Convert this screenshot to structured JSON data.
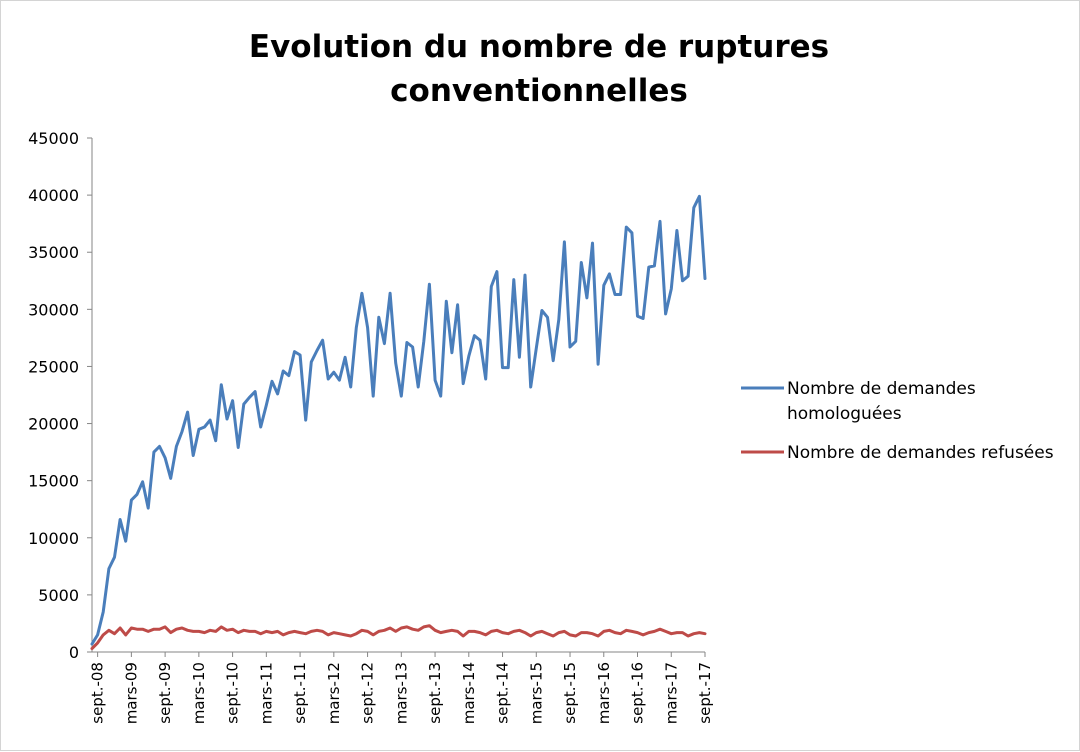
{
  "chart_data": {
    "type": "line",
    "title_lines": [
      "Evolution du nombre de ruptures",
      "conventionnelles"
    ],
    "xlabel": "",
    "ylabel": "",
    "ylim": [
      0,
      45000
    ],
    "y_ticks": [
      "0",
      "5000",
      "10000",
      "15000",
      "20000",
      "25000",
      "30000",
      "35000",
      "40000",
      "45000"
    ],
    "x_start": "2008-08",
    "x_end": "2017-09",
    "x_ticks": [
      {
        "label": "sept.-08",
        "date": "2008-09"
      },
      {
        "label": "mars-09",
        "date": "2009-03"
      },
      {
        "label": "sept.-09",
        "date": "2009-09"
      },
      {
        "label": "mars-10",
        "date": "2010-03"
      },
      {
        "label": "sept.-10",
        "date": "2010-09"
      },
      {
        "label": "mars-11",
        "date": "2011-03"
      },
      {
        "label": "sept.-11",
        "date": "2011-09"
      },
      {
        "label": "mars-12",
        "date": "2012-03"
      },
      {
        "label": "sept.-12",
        "date": "2012-09"
      },
      {
        "label": "mars-13",
        "date": "2013-03"
      },
      {
        "label": "sept.-13",
        "date": "2013-09"
      },
      {
        "label": "mars-14",
        "date": "2014-03"
      },
      {
        "label": "sept.-14",
        "date": "2014-09"
      },
      {
        "label": "mars-15",
        "date": "2015-03"
      },
      {
        "label": "sept.-15",
        "date": "2015-09"
      },
      {
        "label": "mars-16",
        "date": "2016-03"
      },
      {
        "label": "sept.-16",
        "date": "2016-09"
      },
      {
        "label": "mars-17",
        "date": "2017-03"
      },
      {
        "label": "sept.-17",
        "date": "2017-09"
      }
    ],
    "legend_position": "right",
    "grid": false,
    "series": [
      {
        "name_lines": [
          "Nombre de demandes",
          "homologuées"
        ],
        "color": "#4a7ebb",
        "values": [
          700,
          1500,
          3500,
          7300,
          8300,
          11600,
          9700,
          13300,
          13800,
          14900,
          12600,
          17500,
          18000,
          17000,
          15200,
          18000,
          19300,
          21000,
          17200,
          19500,
          19700,
          20300,
          18500,
          23400,
          20400,
          22000,
          17900,
          21700,
          22300,
          22800,
          19700,
          21600,
          23700,
          22600,
          24600,
          24200,
          26300,
          26000,
          20300,
          25400,
          26400,
          27300,
          23900,
          24500,
          23800,
          25800,
          23200,
          28400,
          31400,
          28400,
          22400,
          29300,
          27000,
          31400,
          25300,
          22400,
          27100,
          26700,
          23200,
          27200,
          32200,
          23800,
          22400,
          30700,
          26200,
          30400,
          23500,
          25900,
          27700,
          27300,
          23900,
          32000,
          33300,
          24900,
          24900,
          32600,
          25800,
          33000,
          23200,
          26600,
          29900,
          29300,
          25500,
          29100,
          35900,
          26700,
          27200,
          34100,
          31000,
          35800,
          25200,
          32100,
          33100,
          31300,
          31300,
          37200,
          36700,
          29400,
          29200,
          33700,
          33800,
          37700,
          29600,
          31800,
          36900,
          32500,
          32900,
          38900,
          39900,
          32700
        ]
      },
      {
        "name_lines": [
          "Nombre de demandes refusées"
        ],
        "color": "#be4b48",
        "values": [
          300,
          800,
          1500,
          1900,
          1600,
          2100,
          1500,
          2100,
          2000,
          2000,
          1800,
          2000,
          2000,
          2200,
          1700,
          2000,
          2100,
          1900,
          1800,
          1800,
          1700,
          1900,
          1800,
          2200,
          1900,
          2000,
          1700,
          1900,
          1800,
          1800,
          1600,
          1800,
          1700,
          1800,
          1500,
          1700,
          1800,
          1700,
          1600,
          1800,
          1900,
          1800,
          1500,
          1700,
          1600,
          1500,
          1400,
          1600,
          1900,
          1800,
          1500,
          1800,
          1900,
          2100,
          1800,
          2100,
          2200,
          2000,
          1900,
          2200,
          2300,
          1900,
          1700,
          1800,
          1900,
          1800,
          1400,
          1800,
          1800,
          1700,
          1500,
          1800,
          1900,
          1700,
          1600,
          1800,
          1900,
          1700,
          1400,
          1700,
          1800,
          1600,
          1400,
          1700,
          1800,
          1500,
          1400,
          1700,
          1700,
          1600,
          1400,
          1800,
          1900,
          1700,
          1600,
          1900,
          1800,
          1700,
          1500,
          1700,
          1800,
          2000,
          1800,
          1600,
          1700,
          1700,
          1400,
          1600,
          1700,
          1600
        ]
      }
    ]
  }
}
